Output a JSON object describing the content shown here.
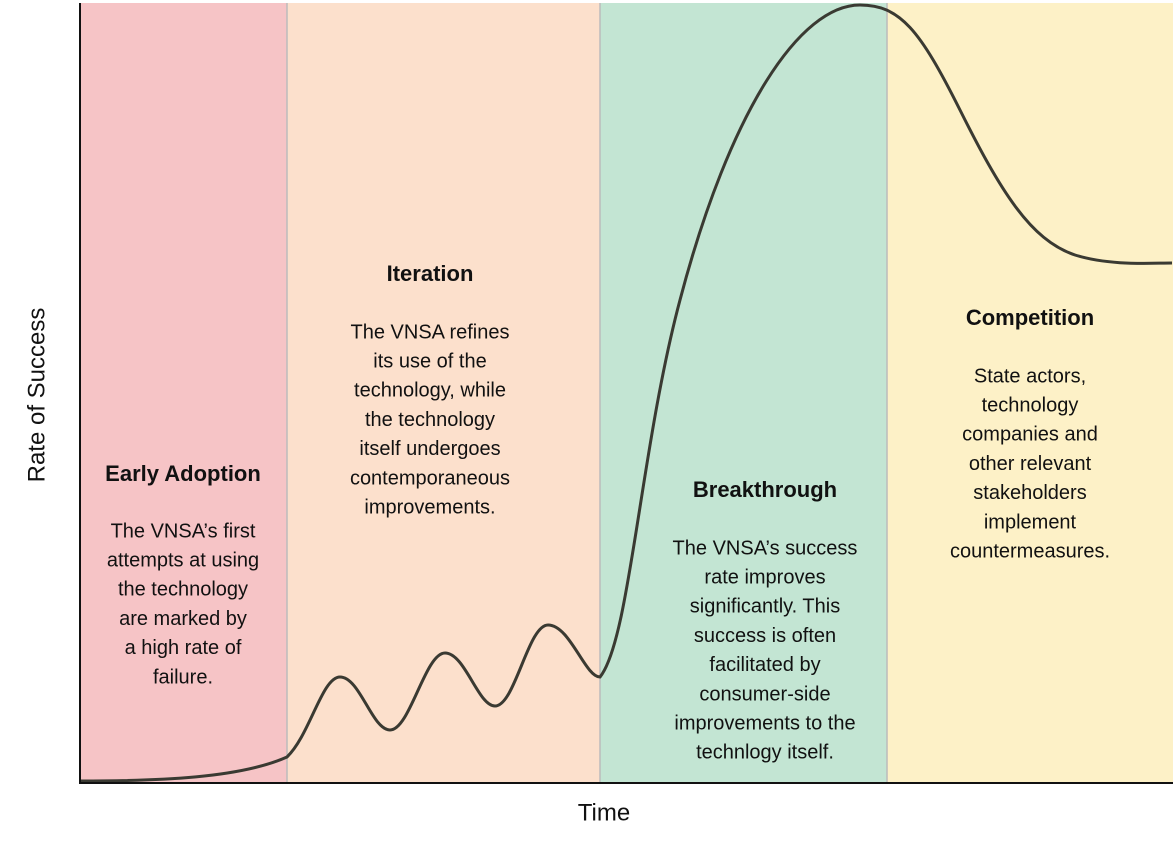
{
  "axes": {
    "x_label": "Time",
    "y_label": "Rate of Success"
  },
  "phases": [
    {
      "title": "Early Adoption",
      "lines": [
        "The VNSA’s first",
        "attempts at using",
        "the technology",
        "are marked by",
        "a high rate of",
        "failure."
      ]
    },
    {
      "title": "Iteration",
      "lines": [
        "The VNSA refines",
        "its use of the",
        "technology, while",
        "the technology",
        "itself undergoes",
        "contemporaneous",
        "improvements."
      ]
    },
    {
      "title": "Breakthrough",
      "lines": [
        "The VNSA’s success",
        "rate improves",
        "significantly. This",
        "success is often",
        "facilitated by",
        "consumer-side",
        "improvements to the",
        "technlogy itself."
      ]
    },
    {
      "title": "Competition",
      "lines": [
        "State actors,",
        "technology",
        "companies and",
        "other relevant",
        "stakeholders",
        "implement",
        "countermeasures."
      ]
    }
  ]
}
